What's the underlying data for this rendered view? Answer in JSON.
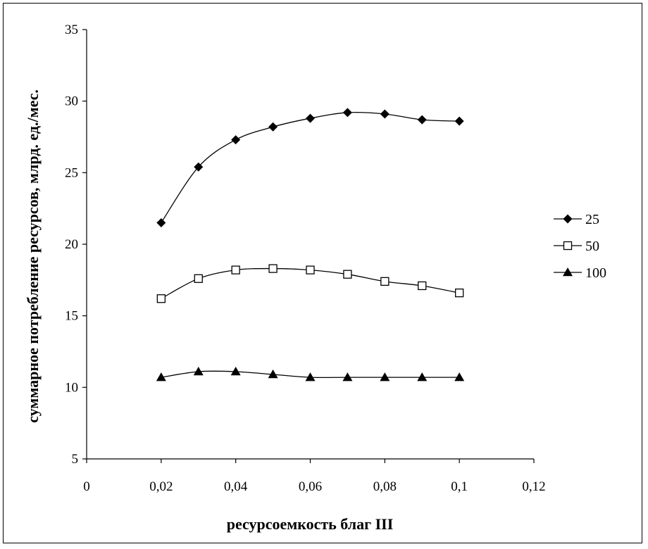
{
  "chart_data": {
    "type": "line",
    "xlabel": "ресурсоемкость благ III",
    "ylabel": "суммарное потребление ресурсов, млрд. ед./мес.",
    "xlim": [
      0,
      0.12
    ],
    "ylim": [
      5,
      35
    ],
    "x_ticks": [
      {
        "value": 0,
        "label": "0"
      },
      {
        "value": 0.02,
        "label": "0,02"
      },
      {
        "value": 0.04,
        "label": "0,04"
      },
      {
        "value": 0.06,
        "label": "0,06"
      },
      {
        "value": 0.08,
        "label": "0,08"
      },
      {
        "value": 0.1,
        "label": "0,1"
      },
      {
        "value": 0.12,
        "label": "0,12"
      }
    ],
    "y_ticks": [
      {
        "value": 5,
        "label": "5"
      },
      {
        "value": 10,
        "label": "10"
      },
      {
        "value": 15,
        "label": "15"
      },
      {
        "value": 20,
        "label": "20"
      },
      {
        "value": 25,
        "label": "25"
      },
      {
        "value": 30,
        "label": "30"
      },
      {
        "value": 35,
        "label": "35"
      }
    ],
    "x": [
      0.02,
      0.03,
      0.04,
      0.05,
      0.06,
      0.07,
      0.08,
      0.09,
      0.1
    ],
    "series": [
      {
        "name": "25",
        "marker": "diamond",
        "values": [
          21.5,
          25.4,
          27.3,
          28.2,
          28.8,
          29.2,
          29.1,
          28.7,
          28.6
        ]
      },
      {
        "name": "50",
        "marker": "square-open",
        "values": [
          16.2,
          17.6,
          18.2,
          18.3,
          18.2,
          17.9,
          17.4,
          17.1,
          16.6
        ]
      },
      {
        "name": "100",
        "marker": "triangle",
        "values": [
          10.7,
          11.1,
          11.1,
          10.9,
          10.7,
          10.7,
          10.7,
          10.7,
          10.7
        ]
      }
    ],
    "legend_position": "right",
    "grid": false,
    "smoothed": true
  }
}
